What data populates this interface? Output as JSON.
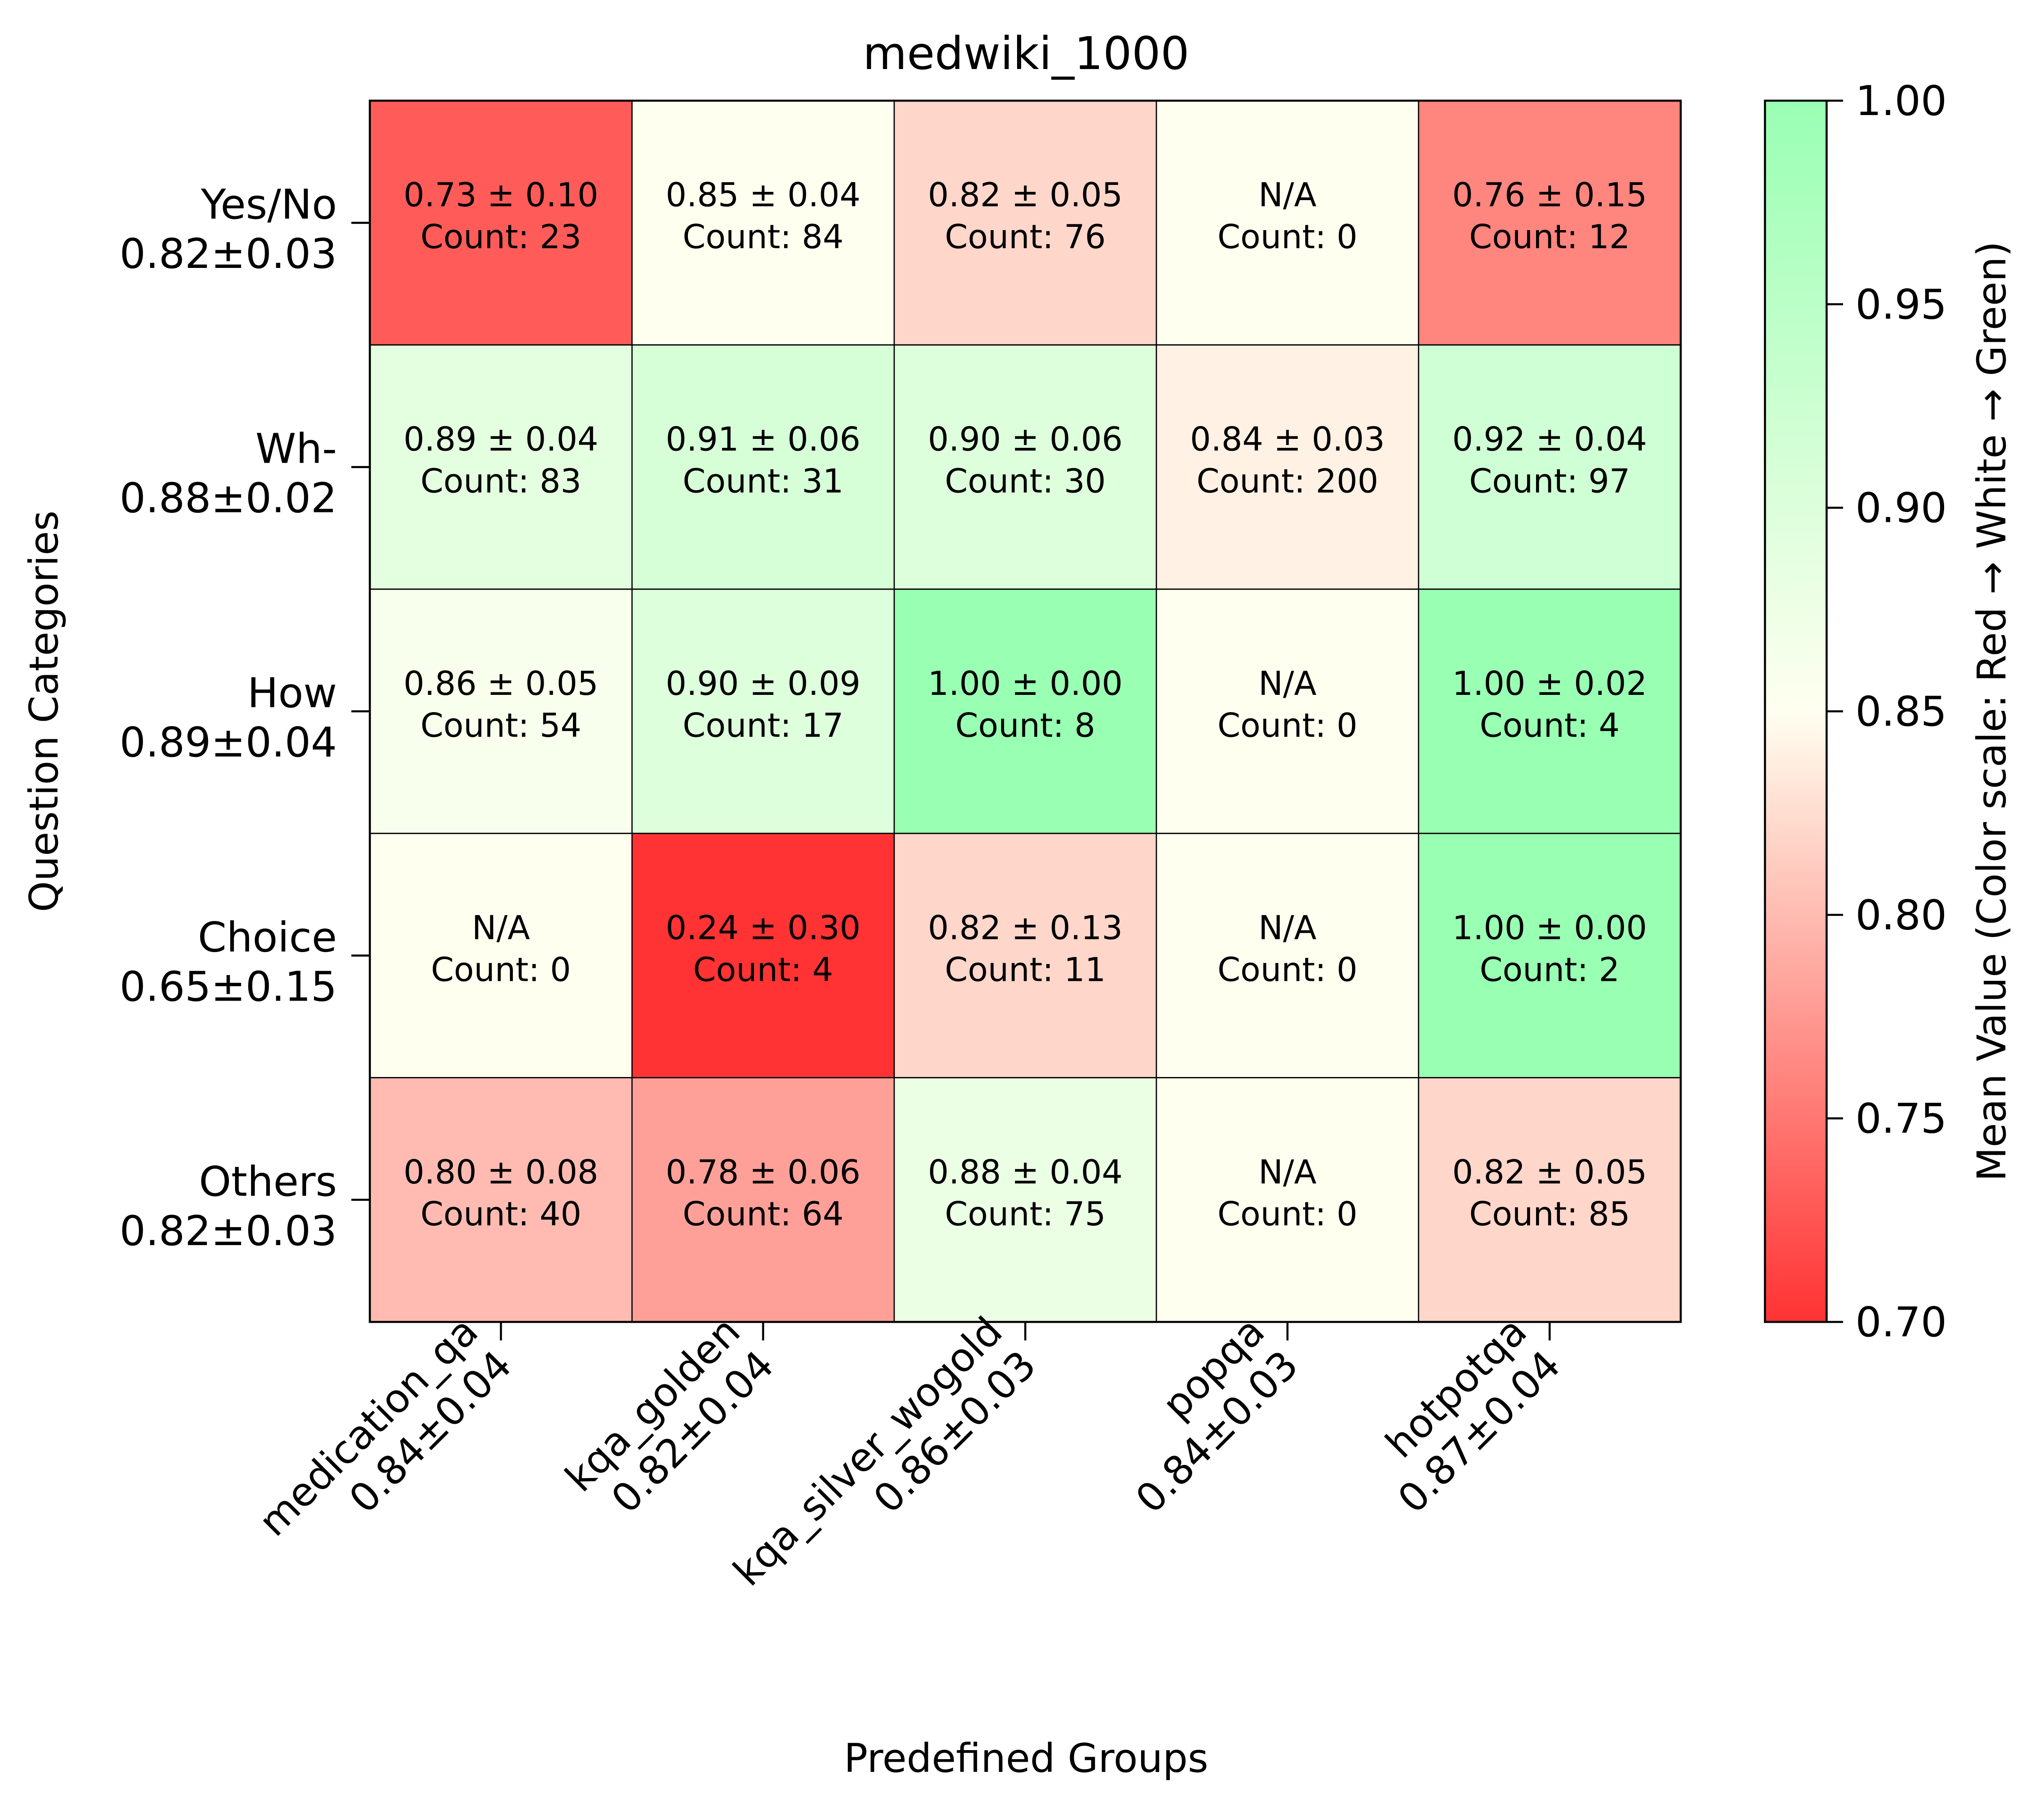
{
  "chart_data": {
    "type": "heatmap",
    "title": "medwiki_1000",
    "xlabel": "Predefined Groups",
    "ylabel": "Question Categories",
    "x_categories": [
      {
        "name": "medication_qa",
        "summary": "0.84±0.04"
      },
      {
        "name": "kqa_golden",
        "summary": "0.82±0.04"
      },
      {
        "name": "kqa_silver_wogold",
        "summary": "0.86±0.03"
      },
      {
        "name": "popqa",
        "summary": "0.84±0.03"
      },
      {
        "name": "hotpotqa",
        "summary": "0.87±0.04"
      }
    ],
    "y_categories": [
      {
        "name": "Yes/No",
        "summary": "0.82±0.03"
      },
      {
        "name": "Wh-",
        "summary": "0.88±0.02"
      },
      {
        "name": "How",
        "summary": "0.89±0.04"
      },
      {
        "name": "Choice",
        "summary": "0.65±0.15"
      },
      {
        "name": "Others",
        "summary": "0.82±0.03"
      }
    ],
    "cells": [
      [
        {
          "mean": 0.73,
          "std": 0.1,
          "count": 23,
          "text": "0.73 ± 0.10",
          "count_text": "Count: 23"
        },
        {
          "mean": 0.85,
          "std": 0.04,
          "count": 84,
          "text": "0.85 ± 0.04",
          "count_text": "Count: 84"
        },
        {
          "mean": 0.82,
          "std": 0.05,
          "count": 76,
          "text": "0.82 ± 0.05",
          "count_text": "Count: 76"
        },
        {
          "mean": null,
          "std": null,
          "count": 0,
          "text": "N/A",
          "count_text": "Count: 0"
        },
        {
          "mean": 0.76,
          "std": 0.15,
          "count": 12,
          "text": "0.76 ± 0.15",
          "count_text": "Count: 12"
        }
      ],
      [
        {
          "mean": 0.89,
          "std": 0.04,
          "count": 83,
          "text": "0.89 ± 0.04",
          "count_text": "Count: 83"
        },
        {
          "mean": 0.91,
          "std": 0.06,
          "count": 31,
          "text": "0.91 ± 0.06",
          "count_text": "Count: 31"
        },
        {
          "mean": 0.9,
          "std": 0.06,
          "count": 30,
          "text": "0.90 ± 0.06",
          "count_text": "Count: 30"
        },
        {
          "mean": 0.84,
          "std": 0.03,
          "count": 200,
          "text": "0.84 ± 0.03",
          "count_text": "Count: 200"
        },
        {
          "mean": 0.92,
          "std": 0.04,
          "count": 97,
          "text": "0.92 ± 0.04",
          "count_text": "Count: 97"
        }
      ],
      [
        {
          "mean": 0.86,
          "std": 0.05,
          "count": 54,
          "text": "0.86 ± 0.05",
          "count_text": "Count: 54"
        },
        {
          "mean": 0.9,
          "std": 0.09,
          "count": 17,
          "text": "0.90 ± 0.09",
          "count_text": "Count: 17"
        },
        {
          "mean": 1.0,
          "std": 0.0,
          "count": 8,
          "text": "1.00 ± 0.00",
          "count_text": "Count: 8"
        },
        {
          "mean": null,
          "std": null,
          "count": 0,
          "text": "N/A",
          "count_text": "Count: 0"
        },
        {
          "mean": 1.0,
          "std": 0.02,
          "count": 4,
          "text": "1.00 ± 0.02",
          "count_text": "Count: 4"
        }
      ],
      [
        {
          "mean": null,
          "std": null,
          "count": 0,
          "text": "N/A",
          "count_text": "Count: 0"
        },
        {
          "mean": 0.24,
          "std": 0.3,
          "count": 4,
          "text": "0.24 ± 0.30",
          "count_text": "Count: 4"
        },
        {
          "mean": 0.82,
          "std": 0.13,
          "count": 11,
          "text": "0.82 ± 0.13",
          "count_text": "Count: 11"
        },
        {
          "mean": null,
          "std": null,
          "count": 0,
          "text": "N/A",
          "count_text": "Count: 0"
        },
        {
          "mean": 1.0,
          "std": 0.0,
          "count": 2,
          "text": "1.00 ± 0.00",
          "count_text": "Count: 2"
        }
      ],
      [
        {
          "mean": 0.8,
          "std": 0.08,
          "count": 40,
          "text": "0.80 ± 0.08",
          "count_text": "Count: 40"
        },
        {
          "mean": 0.78,
          "std": 0.06,
          "count": 64,
          "text": "0.78 ± 0.06",
          "count_text": "Count: 64"
        },
        {
          "mean": 0.88,
          "std": 0.04,
          "count": 75,
          "text": "0.88 ± 0.04",
          "count_text": "Count: 75"
        },
        {
          "mean": null,
          "std": null,
          "count": 0,
          "text": "N/A",
          "count_text": "Count: 0"
        },
        {
          "mean": 0.82,
          "std": 0.05,
          "count": 85,
          "text": "0.82 ± 0.05",
          "count_text": "Count: 85"
        }
      ]
    ],
    "na_color": "#fffff0",
    "colorbar": {
      "label": "Mean Value (Color scale: Red → White → Green)",
      "range": [
        0.7,
        1.0
      ],
      "ticks": [
        "0.70",
        "0.75",
        "0.80",
        "0.85",
        "0.90",
        "0.95",
        "1.00"
      ],
      "colors": [
        "#ff3333",
        "#fffff0",
        "#99ffb3"
      ]
    },
    "grid": true,
    "legend": "colorbar-right"
  }
}
